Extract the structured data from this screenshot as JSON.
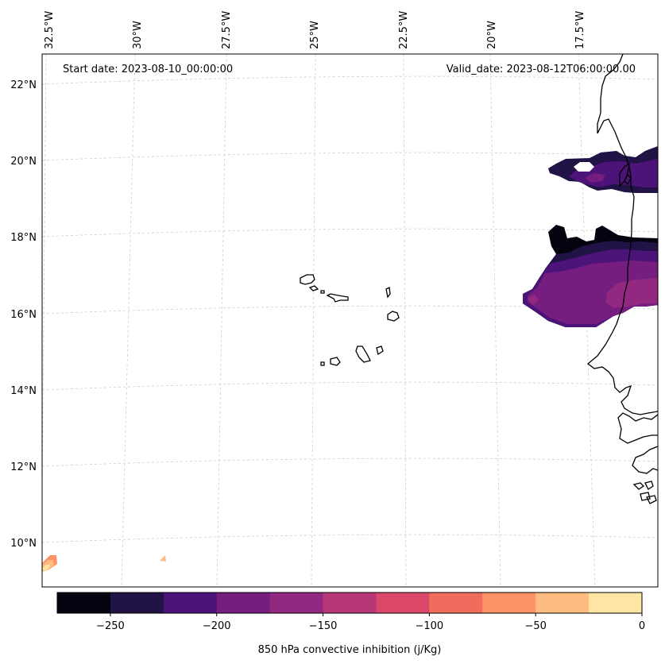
{
  "map": {
    "projection": "lambert-conformal",
    "annotations": {
      "start_date": "Start date: 2023-08-10_00:00:00",
      "valid_date": "Valid_date: 2023-08-12T06:00:00.00"
    },
    "lon_labels": [
      "32.5°W",
      "30°W",
      "27.5°W",
      "25°W",
      "22.5°W",
      "20°W",
      "17.5°W"
    ],
    "lat_labels": [
      "22°N",
      "20°N",
      "18°N",
      "16°N",
      "14°N",
      "12°N",
      "10°N"
    ],
    "features": [
      "Cape Verde islands",
      "West African coastline (Mauritania, Senegal, Gambia, Guinea-Bissau)"
    ]
  },
  "chart_data": {
    "type": "filled-contour",
    "variable": "850 hPa convective inhibition (j/Kg)",
    "levels": [
      -275,
      -250,
      -225,
      -200,
      -175,
      -150,
      -125,
      -100,
      -75,
      -50,
      -25,
      0
    ],
    "colors": [
      "#05030f",
      "#211346",
      "#4c1378",
      "#761d80",
      "#92287f",
      "#b73779",
      "#da4769",
      "#f06d5e",
      "#fc9265",
      "#febc81",
      "#fde5a3"
    ],
    "colorbar": {
      "ticks": [
        -250,
        -200,
        -150,
        -100,
        -50,
        0
      ],
      "tick_labels": [
        "−250",
        "−200",
        "−150",
        "−100",
        "−50",
        "0"
      ],
      "label": "850 hPa convective inhibition (j/Kg)"
    },
    "regions": [
      {
        "name": "northern band near 19.5°N",
        "min_value": -250,
        "dominant_value": -200
      },
      {
        "name": "southern band 16–18°N",
        "min_value": -275,
        "dominant_value": -175
      },
      {
        "name": "small weak area near 9.5°N, 32°W",
        "min_value": -50,
        "dominant_value": -25
      }
    ]
  }
}
